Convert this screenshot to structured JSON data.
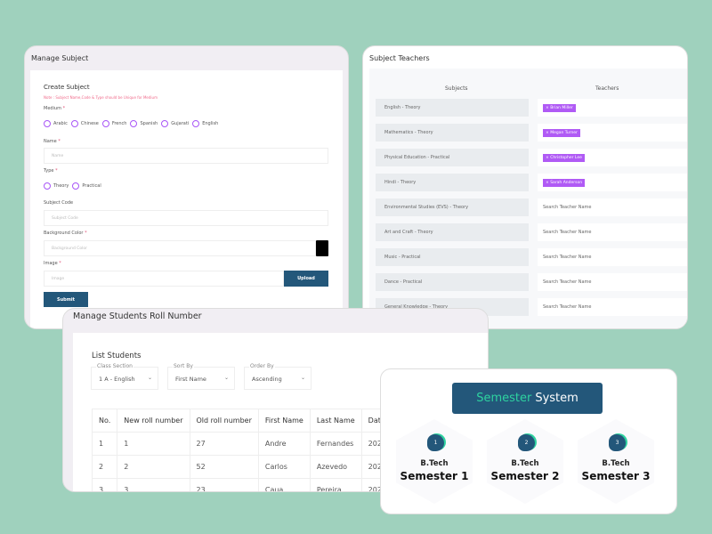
{
  "manage_subject": {
    "title": "Manage Subject",
    "heading": "Create Subject",
    "note": "Note : Subject Name,Code & Type should be Unique for Medium",
    "medium_label": "Medium",
    "mediums": [
      "Arabic",
      "Chinese",
      "French",
      "Spanish",
      "Gujarati",
      "English"
    ],
    "name_label": "Name",
    "name_placeholder": "Name",
    "type_label": "Type",
    "types": [
      "Theory",
      "Practical"
    ],
    "code_label": "Subject Code",
    "code_placeholder": "Subject Code",
    "bg_label": "Background Color",
    "bg_placeholder": "Background Color",
    "bg_value": "#000000",
    "image_label": "Image",
    "image_placeholder": "Image",
    "upload": "Upload",
    "submit": "Submit",
    "required": "*"
  },
  "subject_teachers": {
    "title": "Subject Teachers",
    "col_subjects": "Subjects",
    "col_teachers": "Teachers",
    "rows": [
      {
        "subject": "English - Theory",
        "teacher": "Brian Miller"
      },
      {
        "subject": "Mathematics - Theory",
        "teacher": "Megan Turner"
      },
      {
        "subject": "Physical Education - Practical",
        "teacher": "Christopher Lee"
      },
      {
        "subject": "Hindi - Theory",
        "teacher": "Sarah Anderson"
      },
      {
        "subject": "Environmental Studies (EVS) - Theory",
        "placeholder": "Search Teacher Name"
      },
      {
        "subject": "Art and Craft - Theory",
        "placeholder": "Search Teacher Name"
      },
      {
        "subject": "Music - Practical",
        "placeholder": "Search Teacher Name"
      },
      {
        "subject": "Dance - Practical",
        "placeholder": "Search Teacher Name"
      },
      {
        "subject": "General Knowledge - Theory",
        "placeholder": "Search Teacher Name"
      }
    ]
  },
  "roll": {
    "title": "Manage Students Roll Number",
    "heading": "List Students",
    "filters": [
      {
        "label": "Class Section",
        "value": "1 A - English"
      },
      {
        "label": "Sort By",
        "value": "First Name"
      },
      {
        "label": "Order By",
        "value": "Ascending"
      }
    ],
    "columns": [
      "No.",
      "New roll number",
      "Old roll number",
      "First Name",
      "Last Name",
      "Date"
    ],
    "rows": [
      [
        "1",
        "1",
        "27",
        "Andre",
        "Fernandes",
        "202"
      ],
      [
        "2",
        "2",
        "52",
        "Carlos",
        "Azevedo",
        "202"
      ],
      [
        "3",
        "3",
        "23",
        "Caua",
        "Pereira",
        "202"
      ]
    ]
  },
  "semester": {
    "title_accent": "Semester",
    "title_rest": "System",
    "accent_color": "#2ed3a0",
    "box_color": "#23577a",
    "items": [
      {
        "num": "1",
        "degree": "B.Tech",
        "name": "Semester 1"
      },
      {
        "num": "2",
        "degree": "B.Tech",
        "name": "Semester 2"
      },
      {
        "num": "3",
        "degree": "B.Tech",
        "name": "Semester 3"
      }
    ]
  }
}
